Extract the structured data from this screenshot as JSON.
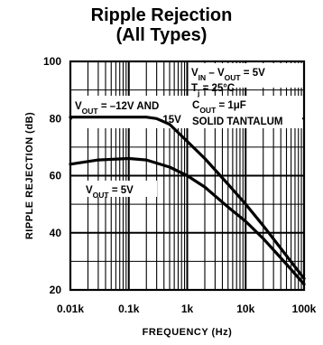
{
  "chart_data": {
    "type": "line",
    "title": "Ripple Rejection",
    "subtitle": "(All Types)",
    "xlabel": "FREQUENCY (Hz)",
    "ylabel": "RIPPLE REJECTION (dB)",
    "xscale": "log",
    "xlim": [
      0.01,
      100
    ],
    "ylim": [
      20,
      100
    ],
    "x_ticks": [
      {
        "value": 0.01,
        "label": "0.01k"
      },
      {
        "value": 0.1,
        "label": "0.1k"
      },
      {
        "value": 1,
        "label": "1k"
      },
      {
        "value": 10,
        "label": "10k"
      },
      {
        "value": 100,
        "label": "100k"
      }
    ],
    "y_ticks": [
      20,
      40,
      60,
      80,
      100
    ],
    "grid": true,
    "series": [
      {
        "x": [
          0.01,
          0.03,
          0.1,
          0.2,
          0.3,
          0.5,
          1,
          2,
          5,
          10,
          20,
          50,
          100
        ],
        "y": [
          80.5,
          80.5,
          80.5,
          80.5,
          80,
          78,
          72,
          66,
          57,
          50,
          42.5,
          32,
          24
        ]
      },
      {
        "x": [
          0.01,
          0.03,
          0.1,
          0.2,
          0.5,
          1,
          2,
          5,
          10,
          20,
          50,
          100
        ],
        "y": [
          64,
          65.5,
          66,
          65.5,
          63,
          60,
          56,
          49,
          44,
          38,
          29,
          22
        ]
      }
    ],
    "annotations": [
      {
        "key": "vin",
        "parts": [
          {
            "t": "V"
          },
          {
            "t": "IN",
            "sub": true
          },
          {
            "t": " – V"
          },
          {
            "t": "OUT",
            "sub": true
          },
          {
            "t": " = 5V"
          }
        ]
      },
      {
        "key": "tj",
        "parts": [
          {
            "t": "T"
          },
          {
            "t": "j",
            "sub": true
          },
          {
            "t": " = 25°C"
          }
        ]
      },
      {
        "key": "vout12",
        "parts": [
          {
            "t": "V"
          },
          {
            "t": "OUT",
            "sub": true
          },
          {
            "t": " = –12V AND"
          }
        ]
      },
      {
        "key": "minus15",
        "parts": [
          {
            "t": "–15V"
          }
        ]
      },
      {
        "key": "cout",
        "parts": [
          {
            "t": "C"
          },
          {
            "t": "OUT",
            "sub": true
          },
          {
            "t": " = 1μF"
          }
        ]
      },
      {
        "key": "solid",
        "parts": [
          {
            "t": "SOLID TANTALUM"
          }
        ]
      },
      {
        "key": "vout5",
        "parts": [
          {
            "t": "V"
          },
          {
            "t": "OUT",
            "sub": true
          },
          {
            "t": " = 5V"
          }
        ]
      }
    ]
  }
}
